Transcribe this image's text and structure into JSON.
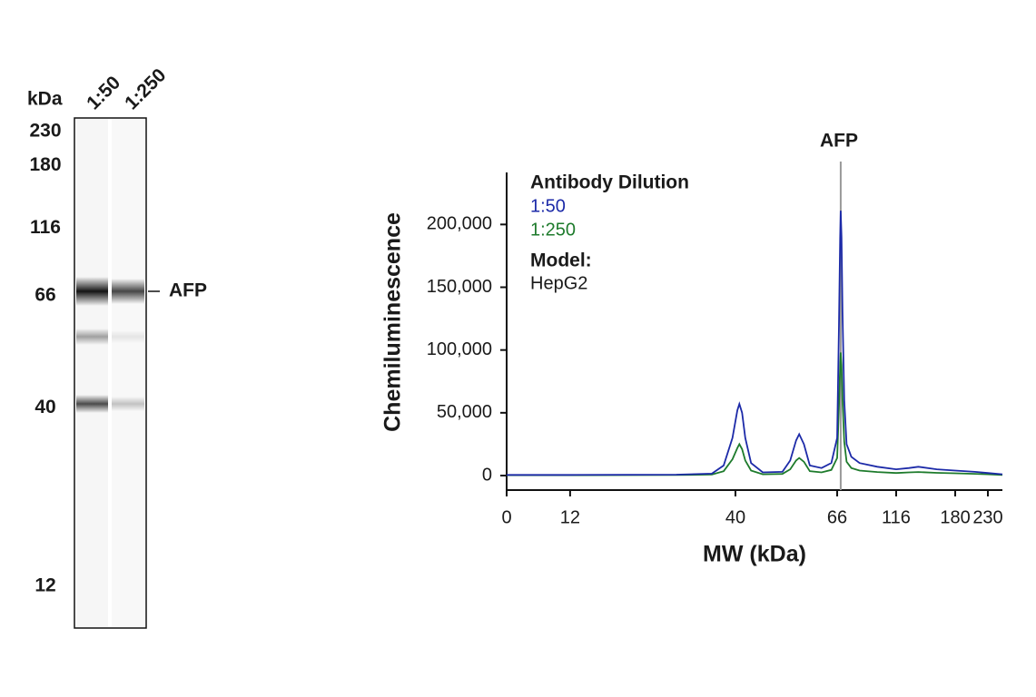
{
  "chart_data": [
    {
      "type": "blot",
      "ylabel": "kDa",
      "lanes": [
        "1:50",
        "1:250"
      ],
      "yticks": [
        230,
        180,
        116,
        66,
        40,
        12
      ],
      "band_label": "AFP"
    },
    {
      "type": "line",
      "title": "AFP",
      "xlabel": "MW (kDa)",
      "ylabel": "Chemiluminescence",
      "legend_title": "Antibody Dilution",
      "annotations": [
        "Model:",
        "HepG2"
      ],
      "xlim": [
        0,
        250
      ],
      "xticks": [
        0,
        12,
        40,
        66,
        116,
        180,
        230
      ],
      "ylim": [
        0,
        240000
      ],
      "yticks": [
        0,
        {
          "value": 50000,
          "label": "50,000"
        },
        {
          "value": 100000,
          "label": "100,000"
        },
        {
          "value": 150000,
          "label": "150,000"
        },
        {
          "value": 200000,
          "label": "200,000"
        }
      ],
      "x": [
        0,
        12,
        30,
        36,
        38,
        39.5,
        40.5,
        41,
        41.7,
        42.5,
        44,
        47,
        52,
        54,
        55.5,
        56.3,
        57.5,
        59,
        62,
        64.5,
        66,
        67.5,
        68.5,
        69,
        69.7,
        70.5,
        72,
        74,
        78,
        85,
        100,
        116,
        130,
        140,
        160,
        180,
        210,
        230,
        250
      ],
      "series": [
        {
          "name": "1:50",
          "color": "#1c2aa8",
          "values": [
            500,
            500,
            700,
            1500,
            8000,
            30000,
            52000,
            57000,
            50000,
            30000,
            10000,
            2500,
            3000,
            12000,
            28000,
            33000,
            25000,
            8000,
            6000,
            10000,
            30000,
            120000,
            190000,
            211000,
            190000,
            130000,
            60000,
            25000,
            15000,
            10000,
            7000,
            5000,
            6000,
            7000,
            5000,
            4000,
            3000,
            2000,
            1000
          ]
        },
        {
          "name": "1:250",
          "color": "#1e7b2c",
          "values": [
            300,
            300,
            400,
            800,
            3500,
            13000,
            22000,
            25000,
            21000,
            12000,
            4000,
            1000,
            1300,
            5000,
            12000,
            14000,
            11000,
            3500,
            2500,
            4500,
            14000,
            55000,
            88000,
            98000,
            88000,
            60000,
            27000,
            11000,
            6000,
            4000,
            2800,
            2000,
            2500,
            2800,
            2200,
            1800,
            1400,
            1000,
            500
          ]
        }
      ]
    }
  ]
}
